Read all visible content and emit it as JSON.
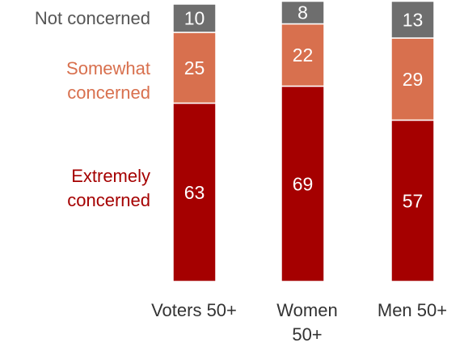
{
  "colors": {
    "extremely": "#A50000",
    "somewhat": "#D8704E",
    "not": "#6E6E6E",
    "label_text": "#FFFFFF",
    "legend_not": "#555555"
  },
  "chart_data": {
    "type": "bar",
    "stacked": true,
    "categories": [
      [
        "Voters 50+"
      ],
      [
        "Women",
        "50+"
      ],
      [
        "Men 50+"
      ]
    ],
    "series": [
      {
        "name": [
          "Extremely",
          "concerned"
        ],
        "key": "extremely",
        "values": [
          63,
          69,
          57
        ]
      },
      {
        "name": [
          "Somewhat",
          "concerned"
        ],
        "key": "somewhat",
        "values": [
          25,
          22,
          29
        ]
      },
      {
        "name": [
          "Not concerned"
        ],
        "key": "not",
        "values": [
          10,
          8,
          13
        ]
      }
    ],
    "ylim": [
      0,
      98
    ],
    "legend_position": "left",
    "grid": false
  }
}
